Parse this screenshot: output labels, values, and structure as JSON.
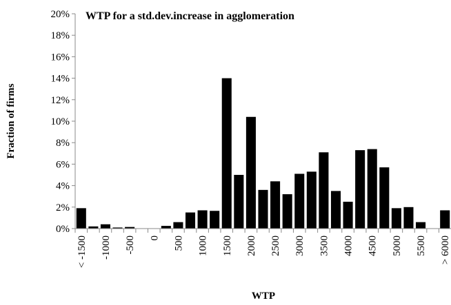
{
  "chart_data": {
    "type": "bar",
    "title": "WTP for a std.dev.increase in agglomeration",
    "x_label": "WTP",
    "y_label": "Fraction of firms",
    "categories": [
      "< -1500",
      null,
      "-1000",
      null,
      "-500",
      null,
      "0",
      null,
      "500",
      null,
      "1000",
      null,
      "1500",
      null,
      "2000",
      null,
      "2500",
      null,
      "3000",
      null,
      "3500",
      null,
      "4000",
      null,
      "4500",
      null,
      "5000",
      null,
      "5500",
      null,
      "> 6000"
    ],
    "values": [
      1.9,
      0.2,
      0.4,
      0.1,
      0.15,
      0,
      0,
      0.25,
      0.6,
      1.5,
      1.7,
      1.65,
      14.0,
      5.0,
      10.4,
      3.6,
      4.4,
      3.2,
      5.1,
      5.3,
      7.1,
      3.5,
      2.5,
      7.3,
      7.4,
      5.7,
      1.9,
      2.0,
      0.6,
      0,
      1.7
    ],
    "color": "#000000",
    "ylim": [
      0,
      20
    ],
    "yticks": [
      {
        "value": 0,
        "label": "0%"
      },
      {
        "value": 2,
        "label": "2%"
      },
      {
        "value": 4,
        "label": "4%"
      },
      {
        "value": 6,
        "label": "6%"
      },
      {
        "value": 8,
        "label": "8%"
      },
      {
        "value": 10,
        "label": "10%"
      },
      {
        "value": 12,
        "label": "12%"
      },
      {
        "value": 14,
        "label": "14%"
      },
      {
        "value": 16,
        "label": "16%"
      },
      {
        "value": 18,
        "label": "18%"
      },
      {
        "value": 20,
        "label": "20%"
      }
    ],
    "grid": false
  }
}
